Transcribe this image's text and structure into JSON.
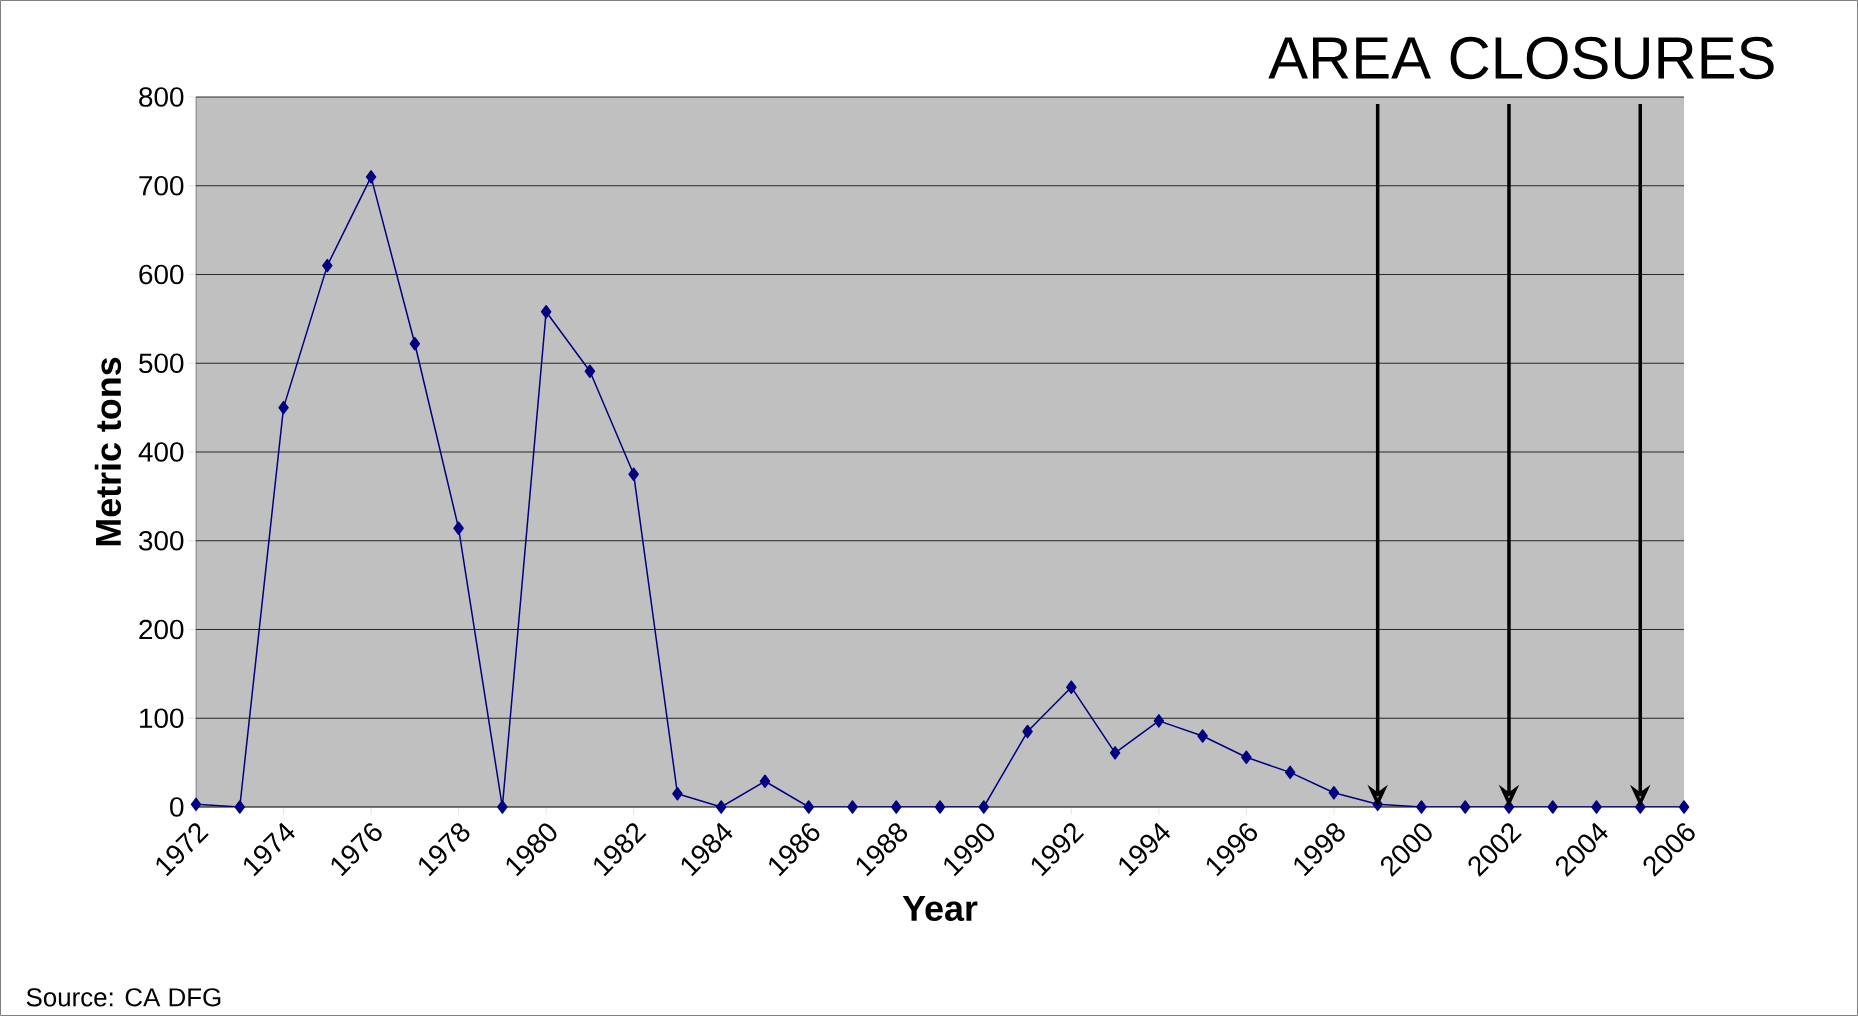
{
  "chart_data": {
    "type": "line",
    "xlabel": "Year",
    "ylabel": "Metric tons",
    "annotations": [
      "AREA CLOSURES",
      "Source: CA DFG"
    ],
    "x": [
      1972,
      1973,
      1974,
      1975,
      1976,
      1977,
      1978,
      1979,
      1980,
      1981,
      1982,
      1983,
      1984,
      1985,
      1986,
      1987,
      1988,
      1989,
      1990,
      1991,
      1992,
      1993,
      1994,
      1995,
      1996,
      1997,
      1998,
      1999,
      2000,
      2001,
      2002,
      2003,
      2004,
      2005,
      2006
    ],
    "series": [
      {
        "color": "#000080",
        "values": [
          3,
          0,
          450,
          610,
          710,
          522,
          314,
          0,
          558,
          491,
          375,
          15,
          0,
          29,
          0,
          0,
          0,
          0,
          0,
          85,
          135,
          61,
          97,
          80,
          56,
          39,
          16,
          3,
          0,
          0,
          0,
          0,
          0,
          0,
          0
        ]
      }
    ],
    "xlim": [
      1972,
      2006
    ],
    "xticks": [
      1972,
      1974,
      1976,
      1978,
      1980,
      1982,
      1984,
      1986,
      1988,
      1990,
      1992,
      1994,
      1996,
      1998,
      2000,
      2002,
      2004,
      2006
    ],
    "ylim": [
      0,
      800
    ],
    "yticks": [
      0,
      100,
      200,
      300,
      400,
      500,
      600,
      700,
      800
    ],
    "grid": "y",
    "marker": "diamond",
    "line_style": "solid",
    "ref_lines": [
      {
        "axis": "x",
        "value": 1999,
        "color": "#000000"
      },
      {
        "axis": "x",
        "value": 2002,
        "color": "#000000"
      },
      {
        "axis": "x",
        "value": 2005,
        "color": "#000000"
      }
    ]
  }
}
